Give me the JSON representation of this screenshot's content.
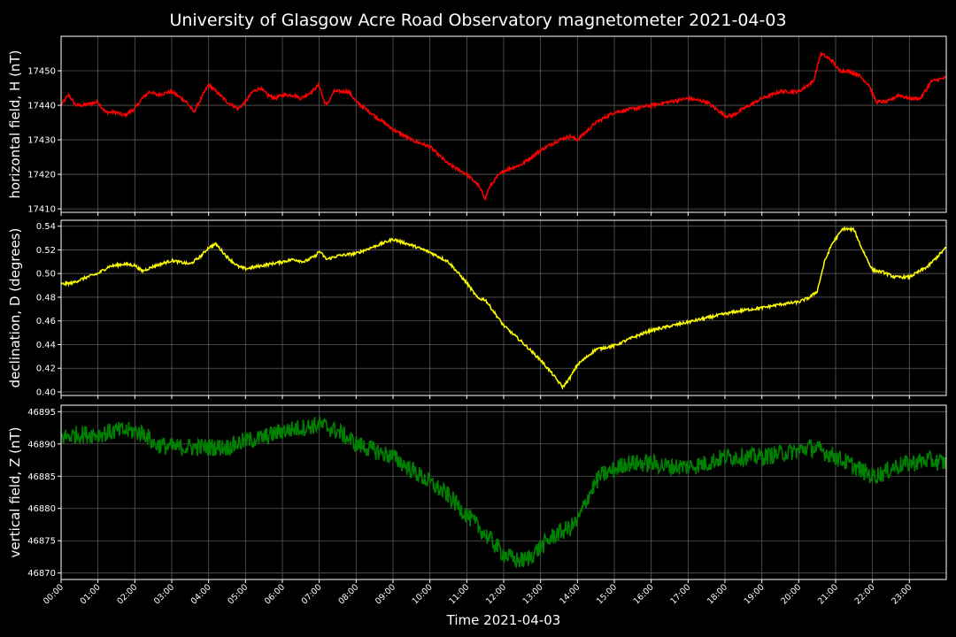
{
  "chart_data": {
    "type": "line",
    "title": "University of Glasgow Acre Road Observatory magnetometer 2021-04-03",
    "xlabel": "Time 2021-04-03",
    "xlim": [
      0,
      24
    ],
    "x_tick_labels": [
      "00:00",
      "01:00",
      "02:00",
      "03:00",
      "04:00",
      "05:00",
      "06:00",
      "07:00",
      "08:00",
      "09:00",
      "10:00",
      "11:00",
      "12:00",
      "13:00",
      "14:00",
      "15:00",
      "16:00",
      "17:00",
      "18:00",
      "19:00",
      "20:00",
      "21:00",
      "22:00",
      "23:00"
    ],
    "grid": true,
    "background": "#000000",
    "panels": [
      {
        "name": "horizontal",
        "ylabel": "horizontal field, H (nT)",
        "color": "#ff0000",
        "ylim": [
          17409,
          17460
        ],
        "yticks": [
          17410,
          17420,
          17430,
          17440,
          17450
        ],
        "ytick_labels": [
          "17410",
          "17420",
          "17430",
          "17440",
          "17450"
        ],
        "noise": 0.5,
        "x": [
          0,
          0.2,
          0.4,
          0.6,
          1.0,
          1.2,
          1.5,
          1.7,
          2.0,
          2.2,
          2.4,
          2.6,
          3.0,
          3.4,
          3.6,
          3.8,
          4.0,
          4.2,
          4.5,
          4.8,
          5.0,
          5.2,
          5.4,
          5.6,
          5.8,
          6.0,
          6.3,
          6.5,
          6.8,
          7.0,
          7.1,
          7.2,
          7.4,
          7.6,
          7.8,
          8.0,
          8.5,
          9.0,
          9.5,
          10.0,
          10.5,
          11.0,
          11.3,
          11.5,
          11.6,
          11.8,
          12.0,
          12.5,
          13.0,
          13.5,
          13.8,
          14.0,
          14.5,
          15.0,
          15.5,
          16.0,
          16.5,
          17.0,
          17.5,
          18.0,
          18.2,
          18.5,
          19.0,
          19.5,
          20.0,
          20.4,
          20.6,
          20.9,
          21.1,
          21.3,
          21.6,
          21.9,
          22.1,
          22.4,
          22.7,
          23.0,
          23.3,
          23.6,
          24.0
        ],
        "y": [
          17440,
          17443,
          17440,
          17440,
          17441,
          17438,
          17438,
          17437,
          17439,
          17442,
          17444,
          17443,
          17444,
          17441,
          17438,
          17442,
          17446,
          17444,
          17441,
          17439,
          17441,
          17444,
          17445,
          17443,
          17442,
          17443,
          17443,
          17442,
          17444,
          17446,
          17442,
          17440,
          17444,
          17444,
          17444,
          17441,
          17437,
          17433,
          17430,
          17428,
          17423,
          17420,
          17417,
          17413,
          17416,
          17419,
          17421,
          17423,
          17427,
          17430,
          17431,
          17430,
          17435,
          17438,
          17439,
          17440,
          17441,
          17442,
          17441,
          17437,
          17437,
          17439,
          17442,
          17444,
          17444,
          17447,
          17455,
          17453,
          17450,
          17450,
          17449,
          17446,
          17441,
          17441,
          17443,
          17442,
          17442,
          17447,
          17448
        ]
      },
      {
        "name": "declination",
        "ylabel": "declination, D (degrees)",
        "color": "#ffff00",
        "ylim": [
          0.397,
          0.545
        ],
        "yticks": [
          0.4,
          0.42,
          0.44,
          0.46,
          0.48,
          0.5,
          0.52,
          0.54
        ],
        "ytick_labels": [
          "0.40",
          "0.42",
          "0.44",
          "0.46",
          "0.48",
          "0.50",
          "0.52",
          "0.54"
        ],
        "noise": 0.0012,
        "x": [
          0,
          0.3,
          0.7,
          1.0,
          1.3,
          1.7,
          2.0,
          2.2,
          2.5,
          3.0,
          3.5,
          3.8,
          4.0,
          4.2,
          4.5,
          4.8,
          5.0,
          5.5,
          6.0,
          6.3,
          6.6,
          6.9,
          7.0,
          7.2,
          7.5,
          8.0,
          8.5,
          9.0,
          9.5,
          10.0,
          10.5,
          11.0,
          11.3,
          11.5,
          12.0,
          12.5,
          13.0,
          13.3,
          13.6,
          13.8,
          14.0,
          14.5,
          15.0,
          15.5,
          16.0,
          17.0,
          18.0,
          18.5,
          19.0,
          19.5,
          20.0,
          20.3,
          20.5,
          20.7,
          20.9,
          21.2,
          21.5,
          21.7,
          22.0,
          22.3,
          22.6,
          23.0,
          23.5,
          24.0
        ],
        "y": [
          0.491,
          0.492,
          0.497,
          0.5,
          0.506,
          0.508,
          0.507,
          0.502,
          0.506,
          0.511,
          0.508,
          0.515,
          0.522,
          0.525,
          0.514,
          0.506,
          0.504,
          0.507,
          0.51,
          0.512,
          0.51,
          0.515,
          0.519,
          0.512,
          0.515,
          0.517,
          0.523,
          0.529,
          0.524,
          0.518,
          0.51,
          0.492,
          0.479,
          0.478,
          0.456,
          0.442,
          0.427,
          0.416,
          0.404,
          0.412,
          0.423,
          0.436,
          0.439,
          0.446,
          0.452,
          0.459,
          0.466,
          0.469,
          0.471,
          0.474,
          0.476,
          0.48,
          0.485,
          0.51,
          0.525,
          0.538,
          0.537,
          0.522,
          0.503,
          0.501,
          0.497,
          0.497,
          0.506,
          0.522
        ]
      },
      {
        "name": "vertical",
        "ylabel": "vertical field, Z (nT)",
        "color": "#008000",
        "ylim": [
          46869,
          46896
        ],
        "yticks": [
          46870,
          46875,
          46880,
          46885,
          46890,
          46895
        ],
        "ytick_labels": [
          "46870",
          "46875",
          "46880",
          "46885",
          "46890",
          "46895"
        ],
        "noise": 1.4,
        "x": [
          0,
          0.5,
          1.0,
          1.5,
          2.0,
          2.3,
          2.5,
          3.0,
          3.5,
          4.0,
          4.5,
          5.0,
          5.5,
          6.0,
          6.5,
          7.0,
          7.5,
          8.0,
          8.5,
          9.0,
          9.5,
          10.0,
          10.5,
          11.0,
          11.5,
          12.0,
          12.3,
          12.6,
          13.0,
          13.4,
          13.8,
          14.0,
          14.3,
          14.6,
          15.0,
          15.3,
          15.6,
          16.0,
          16.5,
          17.0,
          17.5,
          18.0,
          18.5,
          19.0,
          19.5,
          20.0,
          20.3,
          20.6,
          21.0,
          21.5,
          22.0,
          22.3,
          22.6,
          23.0,
          23.5,
          24.0
        ],
        "y": [
          46891,
          46891.5,
          46891.5,
          46892,
          46892,
          46891.5,
          46890,
          46889.5,
          46889.5,
          46889.5,
          46889.5,
          46890.5,
          46891,
          46892,
          46892.5,
          46893,
          46892,
          46890,
          46889,
          46888,
          46886,
          46884,
          46882,
          46879,
          46876,
          46873,
          46872,
          46872,
          46874,
          46876,
          46877,
          46878,
          46882,
          46885,
          46886,
          46887,
          46887,
          46887,
          46886.5,
          46886.5,
          46887,
          46888,
          46888,
          46888,
          46888.5,
          46889,
          46889.5,
          46889,
          46888,
          46886.5,
          46885,
          46885.5,
          46886.5,
          46887,
          46887.5,
          46887
        ]
      }
    ]
  }
}
